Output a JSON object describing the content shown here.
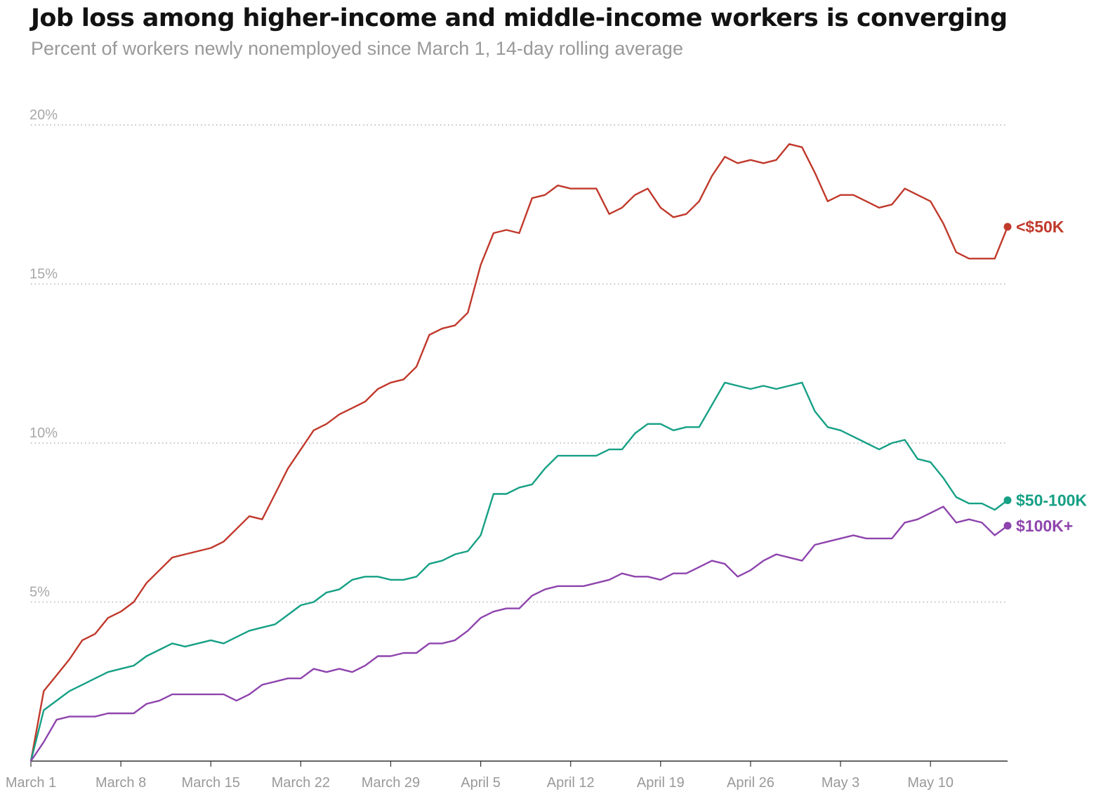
{
  "chart_data": {
    "type": "line",
    "title": "Job loss among higher-income and middle-income workers is converging",
    "subtitle": "Percent of workers newly nonemployed since March 1, 14-day rolling average",
    "xlabel": "",
    "ylabel": "",
    "ylim": [
      0,
      20
    ],
    "yticks": [
      {
        "value": 5,
        "label": "5%"
      },
      {
        "value": 10,
        "label": "10%"
      },
      {
        "value": 15,
        "label": "15%"
      },
      {
        "value": 20,
        "label": "20%"
      }
    ],
    "xlim": [
      0,
      77
    ],
    "xticks": [
      {
        "day": 0,
        "label": "March 1"
      },
      {
        "day": 7,
        "label": "March 8"
      },
      {
        "day": 14,
        "label": "March 15"
      },
      {
        "day": 21,
        "label": "March 22"
      },
      {
        "day": 28,
        "label": "March 29"
      },
      {
        "day": 35,
        "label": "April 5"
      },
      {
        "day": 42,
        "label": "April 12"
      },
      {
        "day": 49,
        "label": "April 19"
      },
      {
        "day": 56,
        "label": "April 26"
      },
      {
        "day": 63,
        "label": "May 3"
      },
      {
        "day": 70,
        "label": "May 10"
      }
    ],
    "x_unit": "days since March 1",
    "grid": true,
    "series": [
      {
        "name": "<$50K",
        "color": "#c0392b",
        "values": [
          0,
          2.2,
          2.7,
          3.2,
          3.8,
          4.0,
          4.5,
          4.7,
          5.0,
          5.6,
          6.0,
          6.4,
          6.5,
          6.6,
          6.7,
          6.9,
          7.3,
          7.7,
          7.6,
          8.4,
          9.2,
          9.8,
          10.4,
          10.6,
          10.9,
          11.1,
          11.3,
          11.7,
          11.9,
          12.0,
          12.4,
          13.4,
          13.6,
          13.7,
          14.1,
          15.6,
          16.6,
          16.7,
          16.6,
          17.7,
          17.8,
          18.1,
          18.0,
          18.0,
          18.0,
          17.2,
          17.4,
          17.8,
          18.0,
          17.4,
          17.1,
          17.2,
          17.6,
          18.4,
          19.0,
          18.8,
          18.9,
          18.8,
          18.9,
          19.4,
          19.3,
          18.5,
          17.6,
          17.8,
          17.8,
          17.6,
          17.4,
          17.5,
          18.0,
          17.8,
          17.6,
          16.9,
          16.0,
          15.8,
          15.8,
          15.8,
          16.8
        ],
        "end_label": "<$50K"
      },
      {
        "name": "$50-100K",
        "color": "#16a085",
        "values": [
          0,
          1.6,
          1.9,
          2.2,
          2.4,
          2.6,
          2.8,
          2.9,
          3.0,
          3.3,
          3.5,
          3.7,
          3.6,
          3.7,
          3.8,
          3.7,
          3.9,
          4.1,
          4.2,
          4.3,
          4.6,
          4.9,
          5.0,
          5.3,
          5.4,
          5.7,
          5.8,
          5.8,
          5.7,
          5.7,
          5.8,
          6.2,
          6.3,
          6.5,
          6.6,
          7.1,
          8.4,
          8.4,
          8.6,
          8.7,
          9.2,
          9.6,
          9.6,
          9.6,
          9.6,
          9.8,
          9.8,
          10.3,
          10.6,
          10.6,
          10.4,
          10.5,
          10.5,
          11.2,
          11.9,
          11.8,
          11.7,
          11.8,
          11.7,
          11.8,
          11.9,
          11.0,
          10.5,
          10.4,
          10.2,
          10.0,
          9.8,
          10.0,
          10.1,
          9.5,
          9.4,
          8.9,
          8.3,
          8.1,
          8.1,
          7.9,
          8.2
        ],
        "end_label": "$50-100K"
      },
      {
        "name": "$100K+",
        "color": "#8e44ad",
        "values": [
          0,
          0.6,
          1.3,
          1.4,
          1.4,
          1.4,
          1.5,
          1.5,
          1.5,
          1.8,
          1.9,
          2.1,
          2.1,
          2.1,
          2.1,
          2.1,
          1.9,
          2.1,
          2.4,
          2.5,
          2.6,
          2.6,
          2.9,
          2.8,
          2.9,
          2.8,
          3.0,
          3.3,
          3.3,
          3.4,
          3.4,
          3.7,
          3.7,
          3.8,
          4.1,
          4.5,
          4.7,
          4.8,
          4.8,
          5.2,
          5.4,
          5.5,
          5.5,
          5.5,
          5.6,
          5.7,
          5.9,
          5.8,
          5.8,
          5.7,
          5.9,
          5.9,
          6.1,
          6.3,
          6.2,
          5.8,
          6.0,
          6.3,
          6.5,
          6.4,
          6.3,
          6.8,
          6.9,
          7.0,
          7.1,
          7.0,
          7.0,
          7.0,
          7.5,
          7.6,
          7.8,
          8.0,
          7.5,
          7.6,
          7.5,
          7.1,
          7.4
        ],
        "end_label": "$100K+"
      }
    ]
  }
}
